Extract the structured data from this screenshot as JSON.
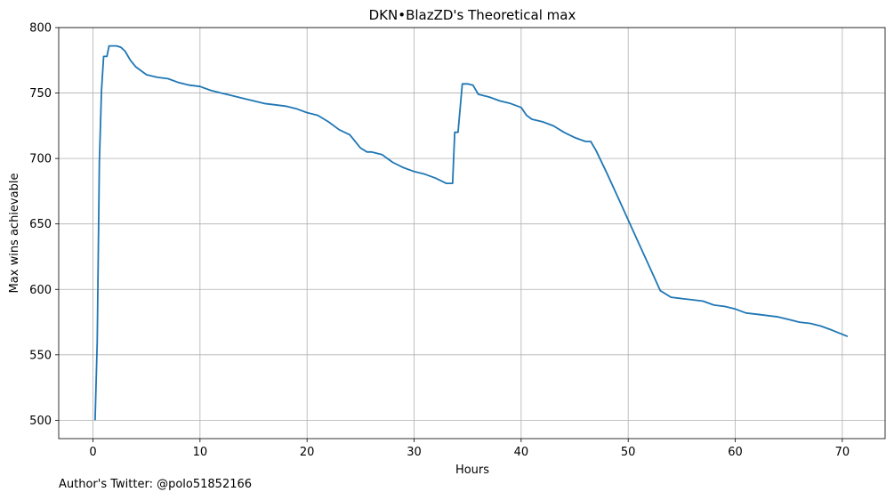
{
  "chart_data": {
    "type": "line",
    "title": "DKN•BlazZD's Theoretical max",
    "xlabel": "Hours",
    "ylabel": "Max wins achievable",
    "xlim": [
      -3.2,
      74.0
    ],
    "ylim": [
      486,
      800
    ],
    "xticks": [
      0,
      10,
      20,
      30,
      40,
      50,
      60,
      70
    ],
    "yticks": [
      500,
      550,
      600,
      650,
      700,
      750,
      800
    ],
    "grid": true,
    "line_color": "#1f77b4",
    "series": [
      {
        "x": [
          0.2,
          0.4,
          0.6,
          0.8,
          1.0,
          1.3,
          1.5,
          1.8,
          2.2,
          2.6,
          3.0,
          3.5,
          4.0,
          5.0,
          6.0,
          7.0,
          8.0,
          9.0,
          10.0,
          11.0,
          12.0,
          13.0,
          14.0,
          15.0,
          16.0,
          17.0,
          18.0,
          19.0,
          20.0,
          21.0,
          22.0,
          23.0,
          24.0,
          25.0,
          25.6,
          26.0,
          27.0,
          27.5,
          28.0,
          29.0,
          30.0,
          31.0,
          32.0,
          33.0,
          33.6,
          33.8,
          34.1,
          34.5,
          35.0,
          35.5,
          36.0,
          37.0,
          38.0,
          39.0,
          40.0,
          40.5,
          41.0,
          42.0,
          43.0,
          44.0,
          45.0,
          46.0,
          46.5,
          47.0,
          48.0,
          49.0,
          50.0,
          51.0,
          52.0,
          53.0,
          54.0,
          55.0,
          56.0,
          57.0,
          58.0,
          59.0,
          60.0,
          61.0,
          62.0,
          63.0,
          64.0,
          65.0,
          66.0,
          67.0,
          68.0,
          69.0,
          70.5
        ],
        "y": [
          500,
          560,
          697,
          752,
          778,
          778,
          786,
          786,
          786,
          785,
          782,
          775,
          770,
          764,
          762,
          761,
          758,
          756,
          755,
          752,
          750,
          748,
          746,
          744,
          742,
          741,
          740,
          738,
          735,
          733,
          728,
          722,
          718,
          708,
          705,
          705,
          703,
          700,
          697,
          693,
          690,
          688,
          685,
          681,
          681,
          720,
          720,
          757,
          757,
          756,
          749,
          747,
          744,
          742,
          739,
          733,
          730,
          728,
          725,
          720,
          716,
          713,
          713,
          706,
          689,
          671,
          653,
          635,
          617,
          599,
          594,
          593,
          592,
          591,
          588,
          587,
          585,
          582,
          581,
          580,
          579,
          577,
          575,
          574,
          572,
          569,
          564
        ]
      }
    ]
  },
  "credit": "Author's Twitter: @polo51852166"
}
